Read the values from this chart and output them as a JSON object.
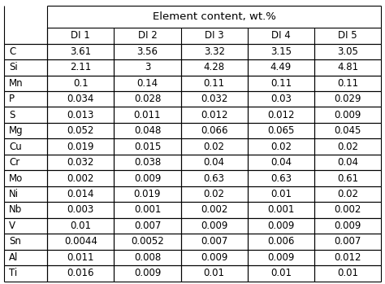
{
  "title": "Element content, wt.%",
  "col_headers": [
    "DI 1",
    "DI 2",
    "DI 3",
    "DI 4",
    "DI 5"
  ],
  "rows": [
    [
      "C",
      "3.61",
      "3.56",
      "3.32",
      "3.15",
      "3.05"
    ],
    [
      "Si",
      "2.11",
      "3",
      "4.28",
      "4.49",
      "4.81"
    ],
    [
      "Mn",
      "0.1",
      "0.14",
      "0.11",
      "0.11",
      "0.11"
    ],
    [
      "P",
      "0.034",
      "0.028",
      "0.032",
      "0.03",
      "0.029"
    ],
    [
      "S",
      "0.013",
      "0.011",
      "0.012",
      "0.012",
      "0.009"
    ],
    [
      "Mg",
      "0.052",
      "0.048",
      "0.066",
      "0.065",
      "0.045"
    ],
    [
      "Cu",
      "0.019",
      "0.015",
      "0.02",
      "0.02",
      "0.02"
    ],
    [
      "Cr",
      "0.032",
      "0.038",
      "0.04",
      "0.04",
      "0.04"
    ],
    [
      "Mo",
      "0.002",
      "0.009",
      "0.63",
      "0.63",
      "0.61"
    ],
    [
      "Ni",
      "0.014",
      "0.019",
      "0.02",
      "0.01",
      "0.02"
    ],
    [
      "Nb",
      "0.003",
      "0.001",
      "0.002",
      "0.001",
      "0.002"
    ],
    [
      "V",
      "0.01",
      "0.007",
      "0.009",
      "0.009",
      "0.009"
    ],
    [
      "Sn",
      "0.0044",
      "0.0052",
      "0.007",
      "0.006",
      "0.007"
    ],
    [
      "Al",
      "0.011",
      "0.008",
      "0.009",
      "0.009",
      "0.012"
    ],
    [
      "Ti",
      "0.016",
      "0.009",
      "0.01",
      "0.01",
      "0.01"
    ]
  ],
  "bg_color": "#ffffff",
  "line_color": "#000000",
  "text_color": "#000000",
  "font_size": 8.5,
  "title_font_size": 9.5,
  "figsize": [
    4.74,
    3.49
  ],
  "dpi": 100
}
